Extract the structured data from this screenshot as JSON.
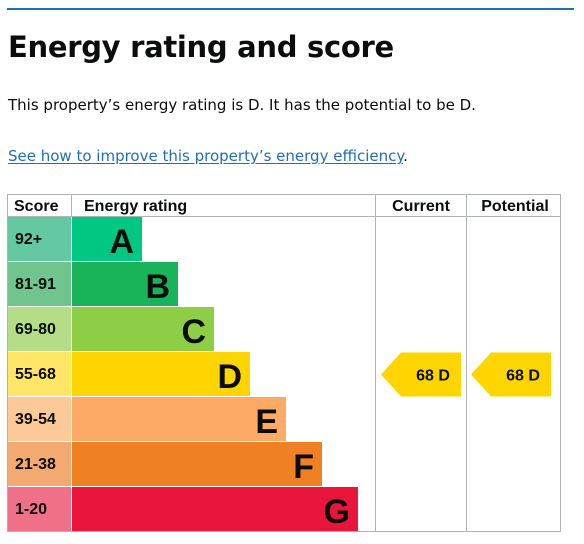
{
  "heading": "Energy rating and score",
  "summary": "This property’s energy rating is D. It has the potential to be D.",
  "improve_link": "See how to improve this property’s energy efficiency",
  "improve_suffix": ".",
  "table": {
    "headers": {
      "score": "Score",
      "rating": "Energy rating",
      "current": "Current",
      "potential": "Potential"
    },
    "bands": [
      {
        "score": "92+",
        "letter": "A",
        "color": "#00c781",
        "score_bg": "#64c9a2"
      },
      {
        "score": "81-91",
        "letter": "B",
        "color": "#19b459",
        "score_bg": "#70c58f"
      },
      {
        "score": "69-80",
        "letter": "C",
        "color": "#8dce46",
        "score_bg": "#b3dd86"
      },
      {
        "score": "55-68",
        "letter": "D",
        "color": "#ffd500",
        "score_bg": "#ffe666"
      },
      {
        "score": "39-54",
        "letter": "E",
        "color": "#fcaa65",
        "score_bg": "#fdc999"
      },
      {
        "score": "21-38",
        "letter": "F",
        "color": "#ef8023",
        "score_bg": "#f4a971"
      },
      {
        "score": "1-20",
        "letter": "G",
        "color": "#e9153b",
        "score_bg": "#f0708a"
      }
    ],
    "current": {
      "value": "68",
      "band": "D",
      "color": "#ffd500"
    },
    "potential": {
      "value": "68",
      "band": "D",
      "color": "#ffd500"
    }
  }
}
